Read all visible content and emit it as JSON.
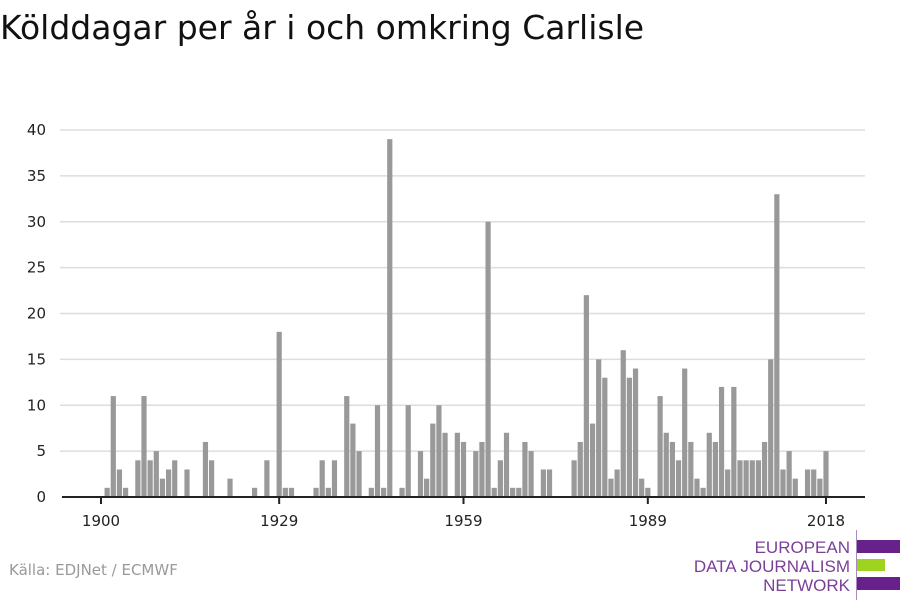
{
  "chart_data": {
    "type": "bar",
    "title": "Kölddagar per år i och omkring Carlisle",
    "xlabel": "",
    "ylabel": "",
    "ylim": [
      0,
      40
    ],
    "yticks": [
      "0",
      "5",
      "10",
      "15",
      "20",
      "25",
      "30",
      "35",
      "40"
    ],
    "xticks": [
      "1900",
      "1929",
      "1959",
      "1989",
      "2018"
    ],
    "grid": true,
    "bar_color": "#999999",
    "x": [
      1900,
      1901,
      1902,
      1903,
      1904,
      1905,
      1906,
      1907,
      1908,
      1909,
      1910,
      1911,
      1912,
      1913,
      1914,
      1915,
      1916,
      1917,
      1918,
      1919,
      1920,
      1921,
      1922,
      1923,
      1924,
      1925,
      1926,
      1927,
      1928,
      1929,
      1930,
      1931,
      1932,
      1933,
      1934,
      1935,
      1936,
      1937,
      1938,
      1939,
      1940,
      1941,
      1942,
      1943,
      1944,
      1945,
      1946,
      1947,
      1948,
      1949,
      1950,
      1951,
      1952,
      1953,
      1954,
      1955,
      1956,
      1957,
      1958,
      1959,
      1960,
      1961,
      1962,
      1963,
      1964,
      1965,
      1966,
      1967,
      1968,
      1969,
      1970,
      1971,
      1972,
      1973,
      1974,
      1975,
      1976,
      1977,
      1978,
      1979,
      1980,
      1981,
      1982,
      1983,
      1984,
      1985,
      1986,
      1987,
      1988,
      1989,
      1990,
      1991,
      1992,
      1993,
      1994,
      1995,
      1996,
      1997,
      1998,
      1999,
      2000,
      2001,
      2002,
      2003,
      2004,
      2005,
      2006,
      2007,
      2008,
      2009,
      2010,
      2011,
      2012,
      2013,
      2014,
      2015,
      2016,
      2017,
      2018
    ],
    "values": [
      0,
      1,
      11,
      3,
      1,
      0,
      4,
      11,
      4,
      5,
      2,
      3,
      4,
      0,
      3,
      0,
      0,
      6,
      4,
      0,
      0,
      2,
      0,
      0,
      0,
      1,
      0,
      4,
      0,
      18,
      1,
      1,
      0,
      0,
      0,
      1,
      4,
      1,
      4,
      0,
      11,
      8,
      5,
      0,
      1,
      10,
      1,
      39,
      0,
      1,
      10,
      0,
      5,
      2,
      8,
      10,
      7,
      0,
      7,
      6,
      0,
      5,
      6,
      30,
      1,
      4,
      7,
      1,
      1,
      6,
      5,
      0,
      3,
      3,
      0,
      0,
      0,
      4,
      6,
      22,
      8,
      15,
      13,
      2,
      3,
      16,
      13,
      14,
      2,
      1,
      0,
      11,
      7,
      6,
      4,
      14,
      6,
      2,
      1,
      7,
      6,
      12,
      3,
      12,
      4,
      4,
      4,
      4,
      6,
      15,
      33,
      3,
      5,
      2,
      0,
      3,
      3,
      2,
      5
    ]
  },
  "source": "Källa: EDJNet / ECMWF",
  "logo": {
    "lines": [
      "EUROPEAN",
      "DATA JOURNALISM",
      "NETWORK"
    ],
    "purple": "#66218a",
    "green": "#9ed31f"
  }
}
